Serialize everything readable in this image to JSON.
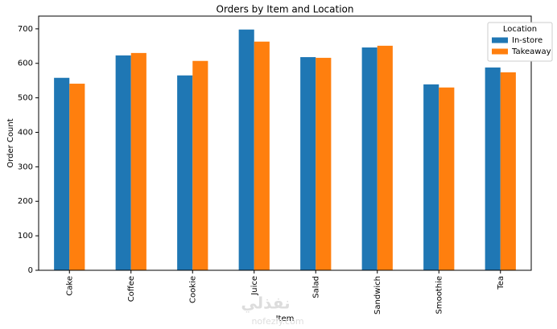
{
  "chart_data": {
    "type": "bar",
    "title": "Orders by Item and Location",
    "x_label": "Item",
    "y_label": "Order Count",
    "categories": [
      "Cake",
      "Coffee",
      "Cookie",
      "Juice",
      "Salad",
      "Sandwich",
      "Smoothie",
      "Tea"
    ],
    "series": [
      {
        "name": "In-store",
        "color": "#1f77b4",
        "values": [
          558,
          623,
          565,
          698,
          618,
          646,
          539,
          588
        ]
      },
      {
        "name": "Takeaway",
        "color": "#ff7f0e",
        "values": [
          541,
          630,
          607,
          663,
          616,
          651,
          530,
          574
        ]
      }
    ],
    "ylim": [
      0,
      737
    ],
    "yticks": [
      0,
      100,
      200,
      300,
      400,
      500,
      600,
      700
    ],
    "legend_title": "Location",
    "legend_position": "upper right",
    "watermark": [
      "نفذلي",
      "nofezly.com"
    ]
  }
}
